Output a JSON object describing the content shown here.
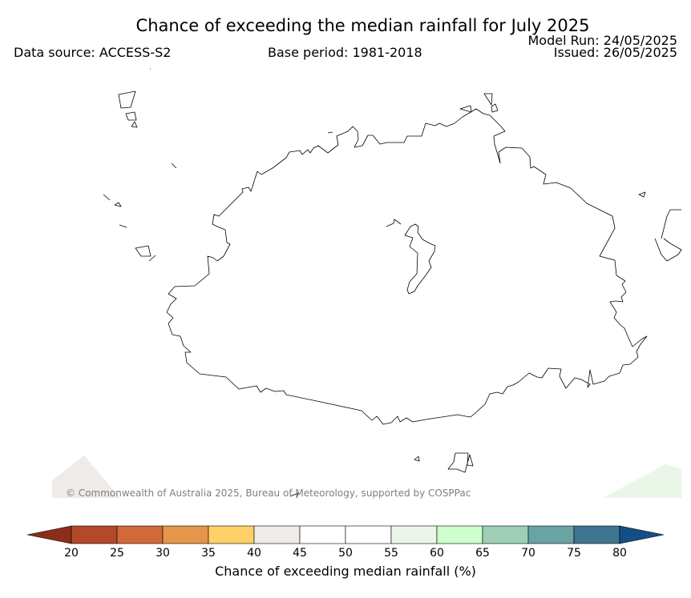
{
  "title": "Chance of exceeding the median rainfall for July 2025",
  "data_source": "Data source: ACCESS-S2",
  "base_period": "Base period: 1981-2018",
  "model_run": "Model Run: 24/05/2025",
  "issued": "Issued: 26/05/2025",
  "copyright": "© Commonwealth of Australia 2025, Bureau of Meteorology, supported by COSPPac",
  "colorbar": {
    "label": "Chance of exceeding median rainfall (%)",
    "ticks": [
      "20",
      "25",
      "30",
      "35",
      "40",
      "45",
      "50",
      "55",
      "60",
      "65",
      "70",
      "75",
      "80"
    ],
    "bins": [
      {
        "range": "<20",
        "color": "#8c2d1a"
      },
      {
        "range": "20-25",
        "color": "#b5482a"
      },
      {
        "range": "25-30",
        "color": "#d2693a"
      },
      {
        "range": "30-35",
        "color": "#e6964a"
      },
      {
        "range": "35-40",
        "color": "#fdd068"
      },
      {
        "range": "40-45",
        "color": "#efebe6"
      },
      {
        "range": "45-50",
        "color": "#ffffff"
      },
      {
        "range": "50-55",
        "color": "#ffffff"
      },
      {
        "range": "55-60",
        "color": "#eaf6e8"
      },
      {
        "range": "60-65",
        "color": "#ccffcc"
      },
      {
        "range": "65-70",
        "color": "#9ecfb5"
      },
      {
        "range": "70-75",
        "color": "#6aa3a3"
      },
      {
        "range": "75-80",
        "color": "#3e7490"
      },
      {
        "range": ">80",
        "color": "#144e86"
      }
    ]
  },
  "map_fill_colors": {
    "land_main": "#ffffff",
    "bottom_left_patch": "#efebe6",
    "bottom_right_patch": "#eaf6e8"
  }
}
